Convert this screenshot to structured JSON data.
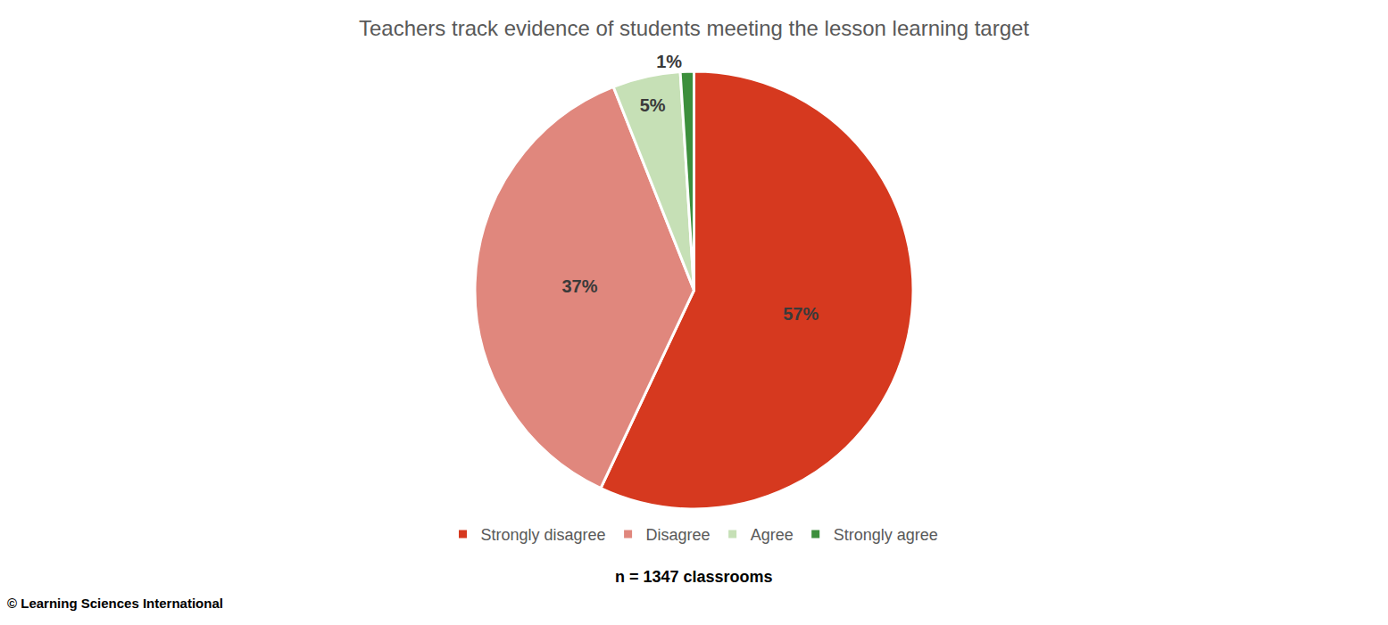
{
  "chart_data": {
    "type": "pie",
    "title": "Teachers track evidence of students meeting the lesson learning target",
    "categories": [
      "Strongly disagree",
      "Disagree",
      "Agree",
      "Strongly agree"
    ],
    "values": [
      57,
      37,
      5,
      1
    ],
    "value_labels": [
      "57%",
      "37%",
      "5%",
      "1%"
    ],
    "colors": [
      "#d6391f",
      "#e0877d",
      "#c6e0b6",
      "#3c8f3c"
    ],
    "data_labels": true,
    "legend": "bottom",
    "annotations": [
      "n = 1347 classrooms",
      "© Learning Sciences International"
    ]
  }
}
